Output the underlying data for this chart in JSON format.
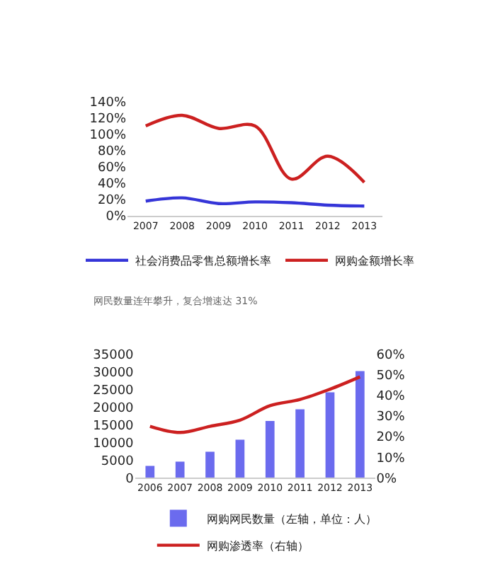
{
  "chart_data": [
    {
      "type": "line",
      "categories": [
        "2007",
        "2008",
        "2009",
        "2010",
        "2011",
        "2012",
        "2013"
      ],
      "series": [
        {
          "name": "社会消费品零售总额增长率",
          "color": "#3535d8",
          "values": [
            18,
            22,
            15,
            17,
            16,
            13,
            12
          ]
        },
        {
          "name": "网购金额增长率",
          "color": "#cc2020",
          "values": [
            110,
            123,
            107,
            110,
            45,
            73,
            41
          ]
        }
      ],
      "ylim": [
        0,
        140
      ],
      "yticks": [
        {
          "value": 0,
          "label": "0%"
        },
        {
          "value": 20,
          "label": "20%"
        },
        {
          "value": 40,
          "label": "40%"
        },
        {
          "value": 60,
          "label": "60%"
        },
        {
          "value": 80,
          "label": "80%"
        },
        {
          "value": 100,
          "label": "100%"
        },
        {
          "value": 120,
          "label": "120%"
        },
        {
          "value": 140,
          "label": "140%"
        }
      ],
      "grid": false,
      "legend": "bottom",
      "marker": "none",
      "line_style": "solid"
    },
    {
      "type": "bar",
      "title": "网民数量连年攀升，复合增速达 31%",
      "categories": [
        "2006",
        "2007",
        "2008",
        "2009",
        "2010",
        "2011",
        "2012",
        "2013"
      ],
      "series": [
        {
          "name": "网购网民数量（左轴，单位：人）",
          "color": "#6b6bee",
          "values": [
            3400,
            4600,
            7400,
            10800,
            16100,
            19400,
            24200,
            30200
          ]
        },
        {
          "name": "网购渗透率（右轴）",
          "type": "line",
          "axis": "y2",
          "color": "#cc2020",
          "values": [
            25,
            22,
            25,
            28,
            35,
            38,
            43,
            49
          ]
        }
      ],
      "ylim": [
        0,
        35000
      ],
      "yticks": [
        0,
        5000,
        10000,
        15000,
        20000,
        25000,
        30000,
        35000
      ],
      "y2lim": [
        0,
        60
      ],
      "y2ticks": [
        {
          "value": 0,
          "label": "0%"
        },
        {
          "value": 10,
          "label": "10%"
        },
        {
          "value": 20,
          "label": "20%"
        },
        {
          "value": 30,
          "label": "30%"
        },
        {
          "value": 40,
          "label": "40%"
        },
        {
          "value": 50,
          "label": "50%"
        },
        {
          "value": 60,
          "label": "60%"
        }
      ],
      "grid": false,
      "legend": "bottom",
      "marker": "none",
      "line_style": "solid"
    }
  ]
}
